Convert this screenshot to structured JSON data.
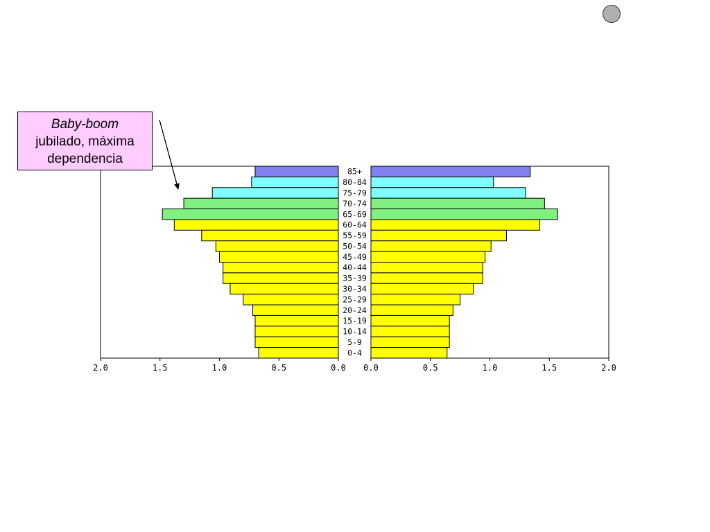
{
  "callout": {
    "line1": "Baby-boom",
    "line2": "jubilado, máxima",
    "line3": "dependencia"
  },
  "nav_button": {
    "icon": "circle-icon",
    "color": "#b0b0b0"
  },
  "chart_data": {
    "type": "bar",
    "orientation": "horizontal-population-pyramid",
    "categories": [
      "85+",
      "80-84",
      "75-79",
      "70-74",
      "65-69",
      "60-64",
      "55-59",
      "50-54",
      "45-49",
      "40-44",
      "35-39",
      "30-34",
      "25-29",
      "20-24",
      "15-19",
      "10-14",
      "5-9",
      "0-4"
    ],
    "series": [
      {
        "side": "left",
        "values": [
          0.7,
          0.73,
          1.06,
          1.3,
          1.48,
          1.38,
          1.15,
          1.03,
          1.0,
          0.97,
          0.97,
          0.91,
          0.8,
          0.72,
          0.7,
          0.7,
          0.7,
          0.67
        ]
      },
      {
        "side": "right",
        "values": [
          1.34,
          1.03,
          1.3,
          1.46,
          1.57,
          1.42,
          1.14,
          1.01,
          0.96,
          0.94,
          0.94,
          0.86,
          0.75,
          0.69,
          0.66,
          0.66,
          0.66,
          0.64
        ]
      }
    ],
    "category_colors": [
      "#8080f0",
      "#80ffff",
      "#80ffff",
      "#80f080",
      "#80f080",
      "#ffff00",
      "#ffff00",
      "#ffff00",
      "#ffff00",
      "#ffff00",
      "#ffff00",
      "#ffff00",
      "#ffff00",
      "#ffff00",
      "#ffff00",
      "#ffff00",
      "#ffff00",
      "#ffff00"
    ],
    "xlim": [
      0,
      2.0
    ],
    "xticks": [
      "2.0",
      "1.5",
      "1.0",
      "0.5",
      "0.0"
    ],
    "xticks_right": [
      "0.0",
      "0.5",
      "1.0",
      "1.5",
      "2.0"
    ],
    "grid": false,
    "title": "",
    "xlabel": "",
    "ylabel": ""
  }
}
